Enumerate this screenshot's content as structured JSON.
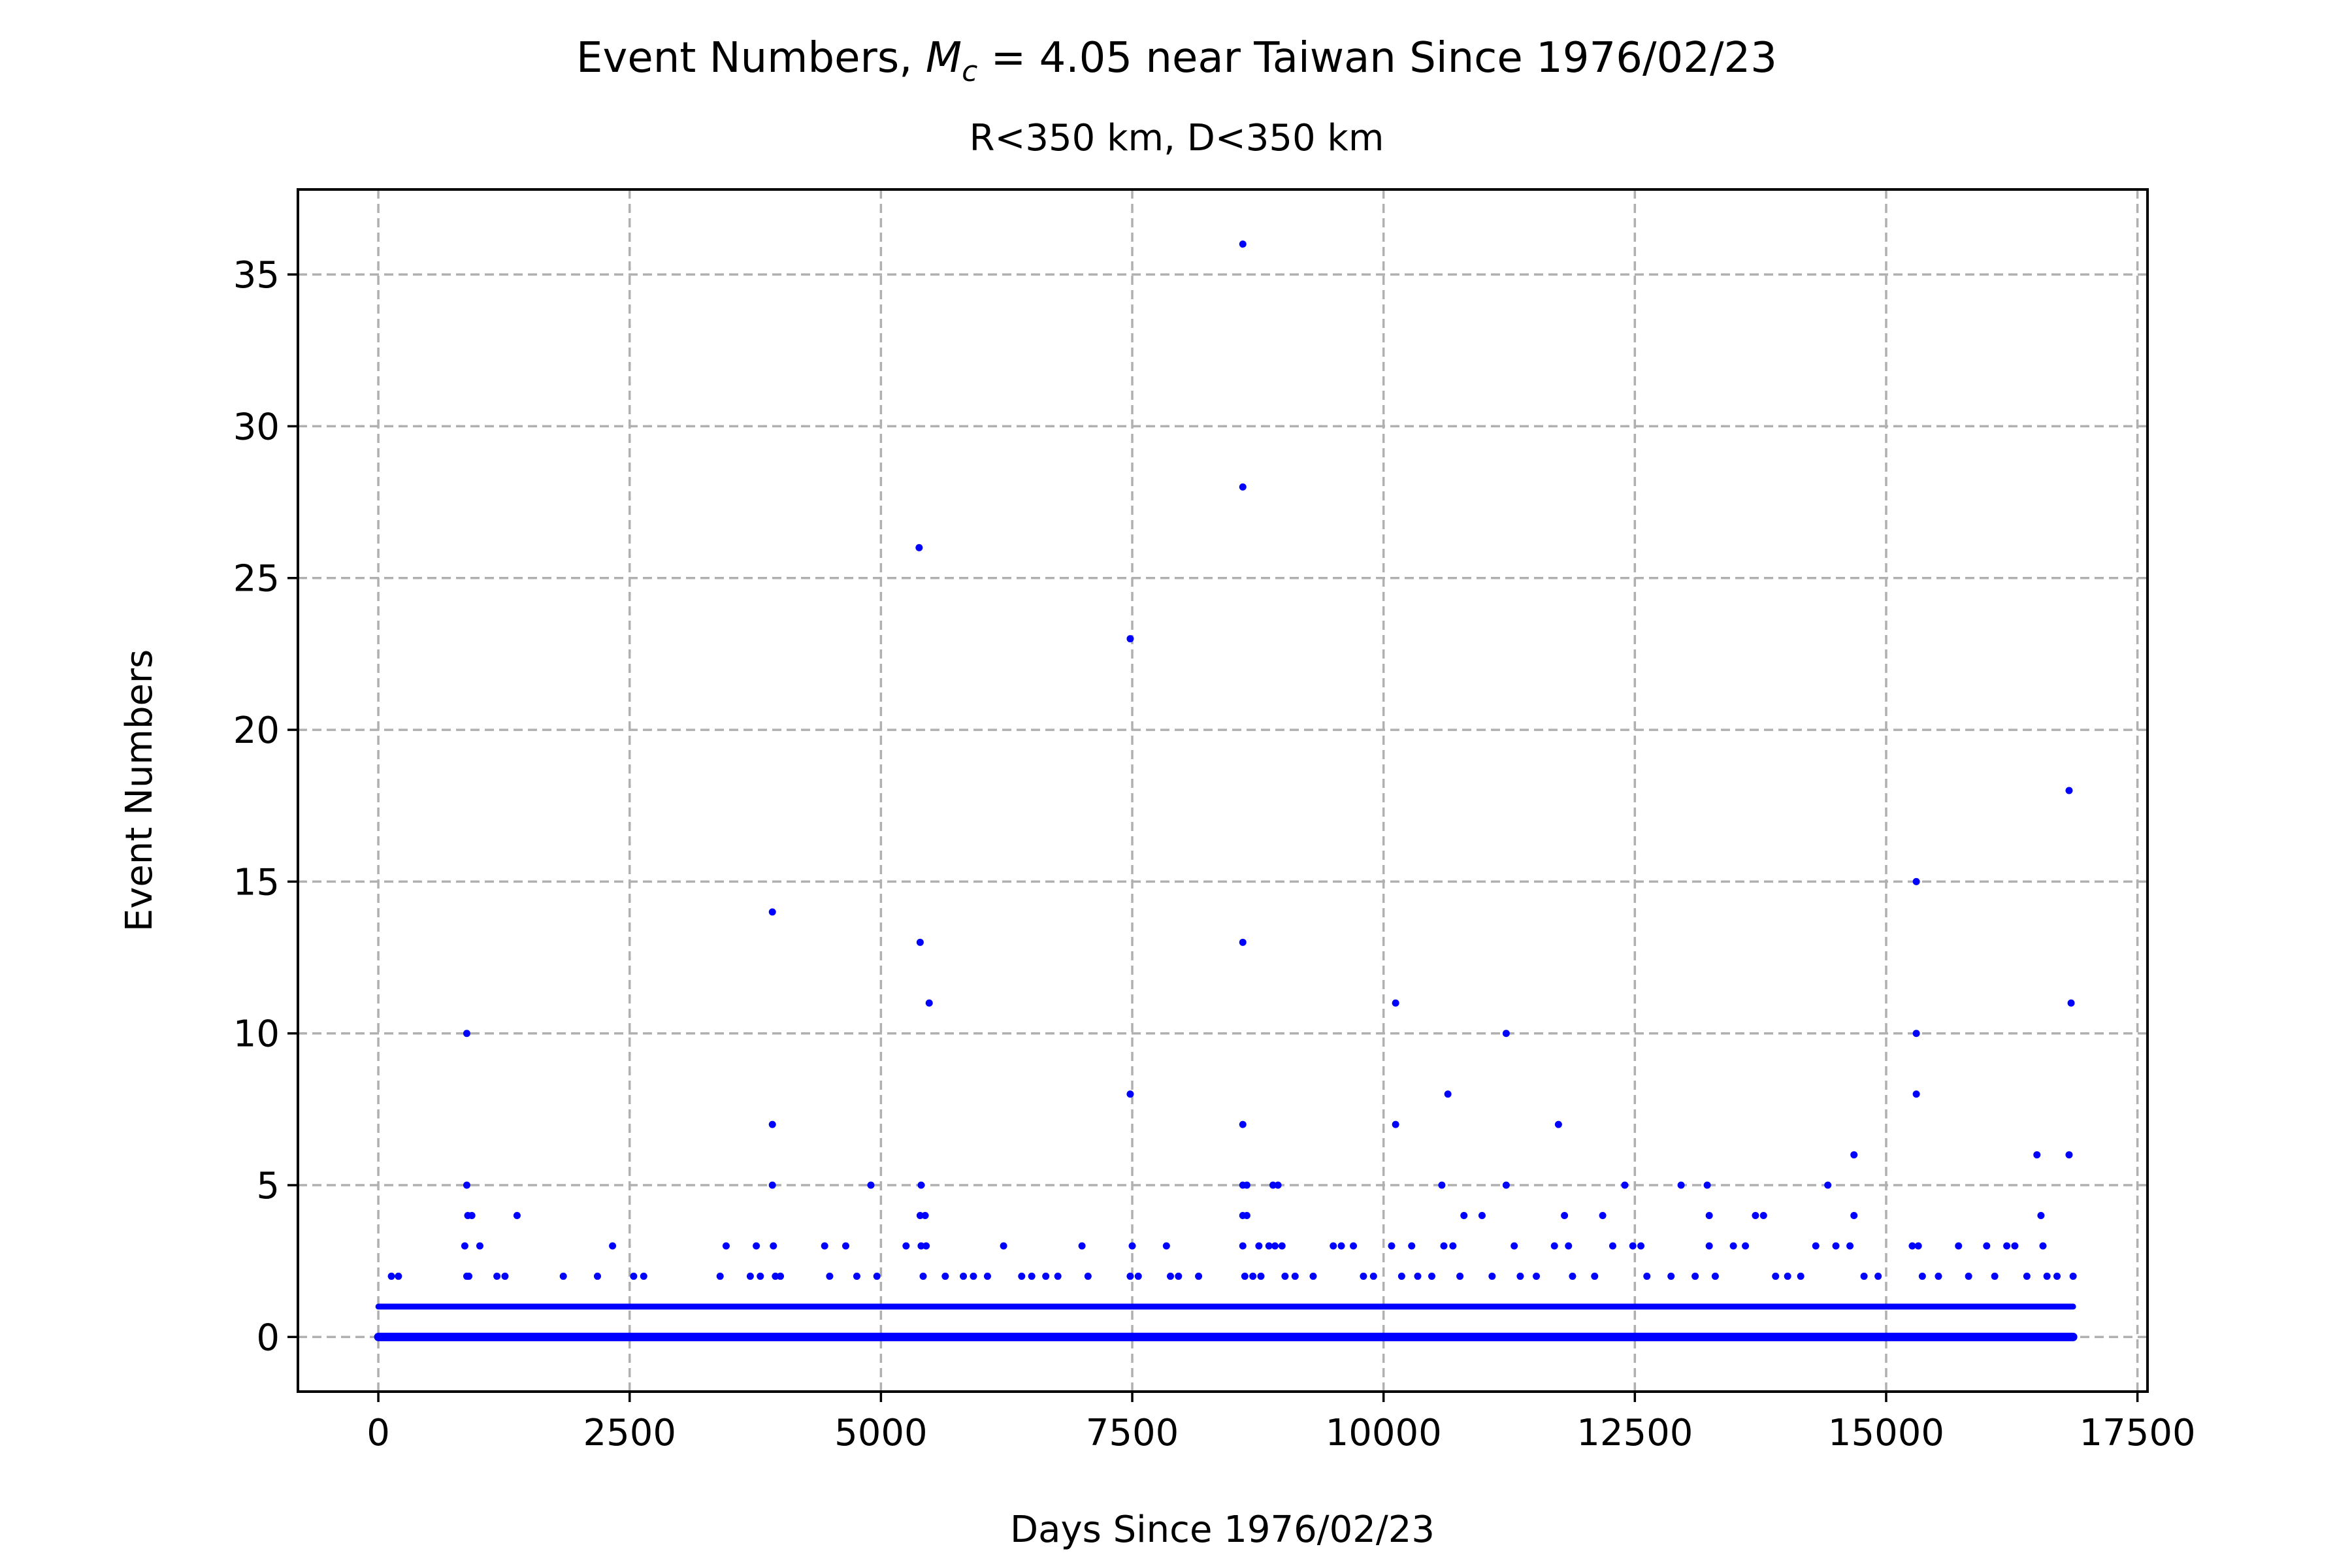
{
  "chart_data": {
    "type": "scatter",
    "title_prefix": "Event Numbers, ",
    "title_math_var": "M",
    "title_math_sub": "c",
    "title_math_rest": " = 4.05",
    "title_suffix": " near Taiwan Since 1976/02/23",
    "subtitle": "R<350 km, D<350 km",
    "xlabel": "Days Since 1976/02/23",
    "ylabel": "Event Numbers",
    "xlim": [
      -800,
      17600
    ],
    "ylim": [
      -1.8,
      37.8
    ],
    "xticks": [
      0,
      2500,
      5000,
      7500,
      10000,
      12500,
      15000,
      17500
    ],
    "yticks": [
      0,
      5,
      10,
      15,
      20,
      25,
      30,
      35
    ],
    "xtick_labels": [
      "0",
      "2500",
      "5000",
      "7500",
      "10000",
      "12500",
      "15000",
      "17500"
    ],
    "ytick_labels": [
      "0",
      "5",
      "10",
      "15",
      "20",
      "25",
      "30",
      "35"
    ],
    "grid": true,
    "marker_color": "#0000ff",
    "baseline": {
      "x_range": [
        0,
        16860
      ],
      "y_values": [
        0,
        1
      ],
      "note_count_visible": "dense points at every day"
    },
    "points": [
      [
        880,
        10
      ],
      [
        880,
        5
      ],
      [
        890,
        4
      ],
      [
        930,
        4
      ],
      [
        860,
        3
      ],
      [
        1010,
        3
      ],
      [
        900,
        2
      ],
      [
        880,
        2
      ],
      [
        1180,
        2
      ],
      [
        1260,
        2
      ],
      [
        1380,
        4
      ],
      [
        1840,
        2
      ],
      [
        2180,
        2
      ],
      [
        2330,
        3
      ],
      [
        2540,
        2
      ],
      [
        2640,
        2
      ],
      [
        130,
        2
      ],
      [
        200,
        2
      ],
      [
        3400,
        2
      ],
      [
        3460,
        3
      ],
      [
        3700,
        2
      ],
      [
        3760,
        3
      ],
      [
        3800,
        2
      ],
      [
        3920,
        14
      ],
      [
        3920,
        7
      ],
      [
        3920,
        5
      ],
      [
        3930,
        3
      ],
      [
        3950,
        2
      ],
      [
        4000,
        2
      ],
      [
        4440,
        3
      ],
      [
        4490,
        2
      ],
      [
        4650,
        3
      ],
      [
        4760,
        2
      ],
      [
        4900,
        5
      ],
      [
        4960,
        2
      ],
      [
        5250,
        3
      ],
      [
        5380,
        26
      ],
      [
        5390,
        13
      ],
      [
        5400,
        5
      ],
      [
        5390,
        4
      ],
      [
        5440,
        4
      ],
      [
        5400,
        3
      ],
      [
        5450,
        3
      ],
      [
        5420,
        2
      ],
      [
        5480,
        11
      ],
      [
        5640,
        2
      ],
      [
        5820,
        2
      ],
      [
        5920,
        2
      ],
      [
        6060,
        2
      ],
      [
        6220,
        3
      ],
      [
        6400,
        2
      ],
      [
        6500,
        2
      ],
      [
        6640,
        2
      ],
      [
        6760,
        2
      ],
      [
        7000,
        3
      ],
      [
        7060,
        2
      ],
      [
        7480,
        23
      ],
      [
        7480,
        8
      ],
      [
        7500,
        3
      ],
      [
        7480,
        2
      ],
      [
        7560,
        2
      ],
      [
        7840,
        3
      ],
      [
        7880,
        2
      ],
      [
        7960,
        2
      ],
      [
        8160,
        2
      ],
      [
        8600,
        36
      ],
      [
        8600,
        28
      ],
      [
        8600,
        13
      ],
      [
        8600,
        7
      ],
      [
        8600,
        5
      ],
      [
        8640,
        5
      ],
      [
        8600,
        4
      ],
      [
        8640,
        4
      ],
      [
        8600,
        3
      ],
      [
        8620,
        2
      ],
      [
        8700,
        2
      ],
      [
        8760,
        3
      ],
      [
        8780,
        2
      ],
      [
        8860,
        3
      ],
      [
        8900,
        5
      ],
      [
        8950,
        5
      ],
      [
        8920,
        3
      ],
      [
        8990,
        3
      ],
      [
        9020,
        2
      ],
      [
        9120,
        2
      ],
      [
        9300,
        2
      ],
      [
        9500,
        3
      ],
      [
        9580,
        3
      ],
      [
        9700,
        3
      ],
      [
        9800,
        2
      ],
      [
        9900,
        2
      ],
      [
        10120,
        11
      ],
      [
        10120,
        7
      ],
      [
        10080,
        3
      ],
      [
        10180,
        2
      ],
      [
        10280,
        3
      ],
      [
        10340,
        2
      ],
      [
        10480,
        2
      ],
      [
        10580,
        5
      ],
      [
        10640,
        8
      ],
      [
        10600,
        3
      ],
      [
        10690,
        3
      ],
      [
        10760,
        2
      ],
      [
        10800,
        4
      ],
      [
        10980,
        4
      ],
      [
        11080,
        2
      ],
      [
        11220,
        10
      ],
      [
        11220,
        5
      ],
      [
        11300,
        3
      ],
      [
        11360,
        2
      ],
      [
        11520,
        2
      ],
      [
        11700,
        3
      ],
      [
        11740,
        7
      ],
      [
        11800,
        4
      ],
      [
        11840,
        3
      ],
      [
        11880,
        2
      ],
      [
        12100,
        2
      ],
      [
        12180,
        4
      ],
      [
        12280,
        3
      ],
      [
        12400,
        5
      ],
      [
        12480,
        3
      ],
      [
        12560,
        3
      ],
      [
        12620,
        2
      ],
      [
        12860,
        2
      ],
      [
        12960,
        5
      ],
      [
        13100,
        2
      ],
      [
        13220,
        5
      ],
      [
        13240,
        4
      ],
      [
        13240,
        3
      ],
      [
        13300,
        2
      ],
      [
        13480,
        3
      ],
      [
        13600,
        3
      ],
      [
        13700,
        4
      ],
      [
        13780,
        4
      ],
      [
        13900,
        2
      ],
      [
        14020,
        2
      ],
      [
        14150,
        2
      ],
      [
        14300,
        3
      ],
      [
        14420,
        5
      ],
      [
        14500,
        3
      ],
      [
        14680,
        6
      ],
      [
        14680,
        4
      ],
      [
        14640,
        3
      ],
      [
        14780,
        2
      ],
      [
        14920,
        2
      ],
      [
        15260,
        3
      ],
      [
        15300,
        15
      ],
      [
        15300,
        10
      ],
      [
        15300,
        8
      ],
      [
        15320,
        3
      ],
      [
        15360,
        2
      ],
      [
        15520,
        2
      ],
      [
        15720,
        3
      ],
      [
        15820,
        2
      ],
      [
        16000,
        3
      ],
      [
        16080,
        2
      ],
      [
        16200,
        3
      ],
      [
        16280,
        3
      ],
      [
        16400,
        2
      ],
      [
        16500,
        6
      ],
      [
        16540,
        4
      ],
      [
        16560,
        3
      ],
      [
        16600,
        2
      ],
      [
        16700,
        2
      ],
      [
        16820,
        18
      ],
      [
        16840,
        11
      ],
      [
        16820,
        6
      ],
      [
        16860,
        2
      ]
    ]
  }
}
